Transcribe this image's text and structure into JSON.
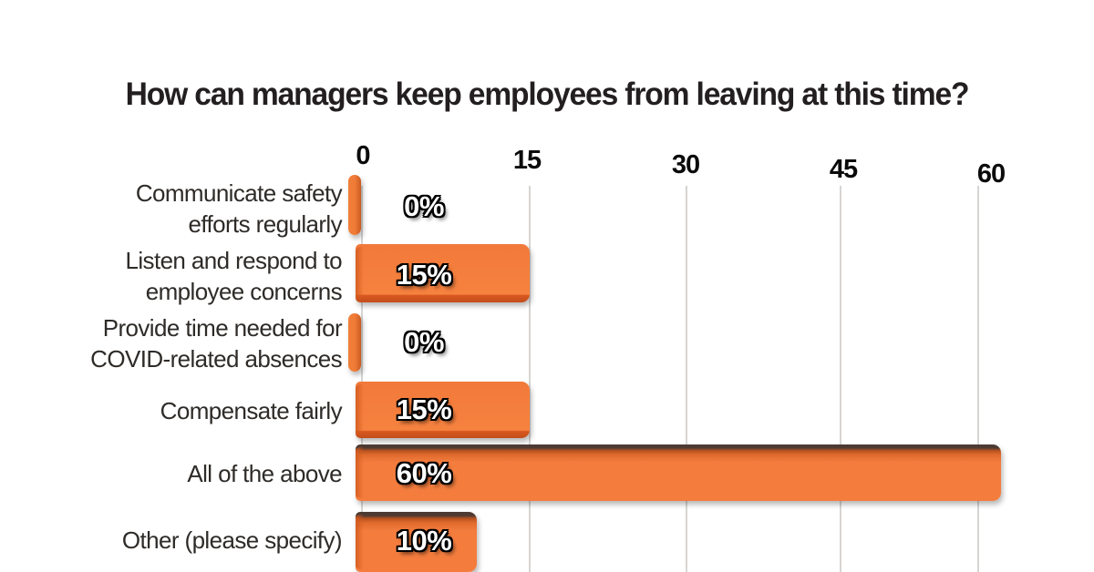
{
  "chart_data": {
    "type": "bar",
    "orientation": "horizontal",
    "title": "How can managers keep employees from leaving at this time?",
    "categories": [
      "Communicate safety\nefforts regularly",
      "Listen and respond to\nemployee concerns",
      "Provide time needed for\nCOVID-related absences",
      "Compensate fairly",
      "All of the above",
      "Other (please specify)"
    ],
    "values": [
      0,
      15,
      0,
      15,
      60,
      10
    ],
    "value_labels": [
      "0%",
      "15%",
      "0%",
      "15%",
      "60%",
      "10%"
    ],
    "x_ticks": [
      "0",
      "15",
      "30",
      "45",
      "60"
    ],
    "xlim": [
      0,
      60
    ],
    "grid": "vertical-gridlines-on",
    "legend": "none",
    "colors": {
      "bar_fill": "#f57e3e",
      "bar_edge_dark": "#c24e1c",
      "bar_top_face_dark": "#4d3a33",
      "gridline": "#d7d5d3",
      "title_text": "#231f20",
      "category_text": "#2e2b28",
      "tick_text": "#0b0b0b",
      "value_label_text": "#ffffff",
      "background": "#ffffff"
    }
  }
}
